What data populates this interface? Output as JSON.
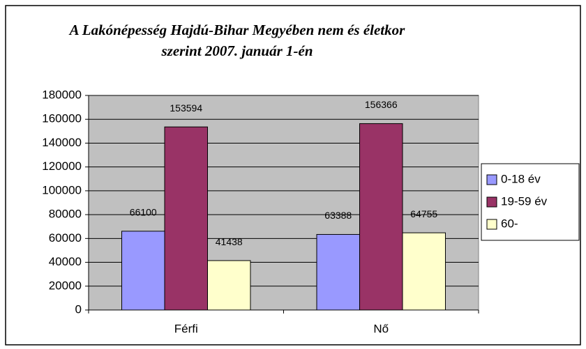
{
  "chart_data": {
    "type": "bar",
    "title": [
      "A Lakónépesség Hajdú-Bihar Megyében nem és életkor",
      "szerint 2007. január 1-én"
    ],
    "categories": [
      "Férfi",
      "Nő"
    ],
    "series": [
      {
        "name": "0-18 év",
        "color": "#9999ff",
        "values": [
          66100,
          63388
        ]
      },
      {
        "name": "19-59 év",
        "color": "#993366",
        "values": [
          153594,
          156366
        ]
      },
      {
        "name": "60-",
        "color": "#ffffcc",
        "values": [
          41438,
          64755
        ]
      }
    ],
    "ylim": [
      0,
      180000
    ],
    "yticks": [
      0,
      20000,
      40000,
      60000,
      80000,
      100000,
      120000,
      140000,
      160000,
      180000
    ],
    "grid": true,
    "legend": "right"
  }
}
